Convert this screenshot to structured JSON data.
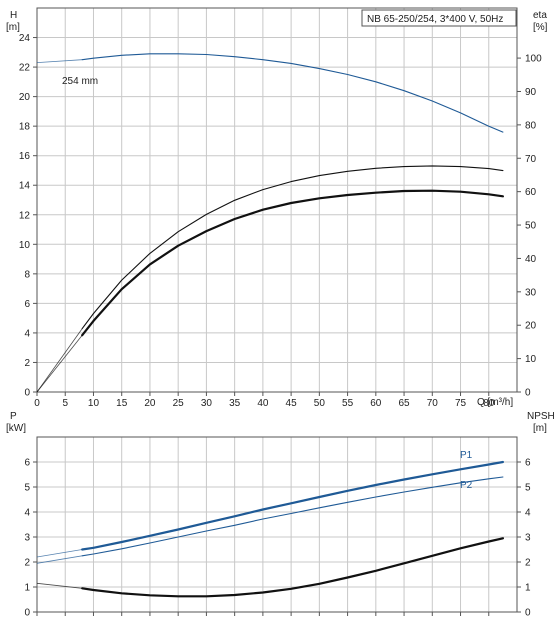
{
  "chart_data": [
    {
      "type": "line",
      "title": "NB 65-250/254, 3*400 V, 50Hz",
      "left_axis_label": [
        "H",
        "[m]"
      ],
      "right_axis_label": [
        "eta",
        "[%]"
      ],
      "xlabel": "Q [m³/h]",
      "xlim": [
        0,
        85
      ],
      "x_ticks": [
        0,
        5,
        10,
        15,
        20,
        25,
        30,
        35,
        40,
        45,
        50,
        55,
        60,
        65,
        70,
        75,
        80
      ],
      "x_tick_labels": [
        "0",
        "5",
        "10",
        "15",
        "20",
        "25",
        "30",
        "35",
        "40",
        "45",
        "50",
        "55",
        "60",
        "65",
        "70",
        "75",
        "80"
      ],
      "ylim_left": [
        0,
        26
      ],
      "y_ticks_left": [
        0,
        2,
        4,
        6,
        8,
        10,
        12,
        14,
        16,
        18,
        20,
        22,
        24
      ],
      "ylim_right": [
        0,
        115
      ],
      "y_ticks_right": [
        0,
        10,
        20,
        30,
        40,
        50,
        60,
        70,
        80,
        90,
        100
      ],
      "grid": true,
      "series": [
        {
          "name": "254 mm",
          "axis": "left",
          "color": "#1f5a96",
          "dashed_extension": [
            [
              0,
              22.3
            ],
            [
              8,
              22.5
            ]
          ],
          "x": [
            8,
            10,
            15,
            20,
            25,
            30,
            35,
            40,
            45,
            50,
            55,
            60,
            65,
            70,
            75,
            80,
            82.5
          ],
          "y": [
            22.5,
            22.6,
            22.8,
            22.9,
            22.9,
            22.85,
            22.7,
            22.5,
            22.25,
            21.9,
            21.5,
            21.0,
            20.4,
            19.7,
            18.9,
            18.0,
            17.6
          ]
        },
        {
          "axis": "right",
          "color": "#111111",
          "dashed_extension": [
            [
              0,
              0
            ],
            [
              8,
              19
            ]
          ],
          "x": [
            8,
            10,
            15,
            20,
            25,
            30,
            35,
            40,
            45,
            50,
            55,
            60,
            65,
            70,
            75,
            80,
            82.5
          ],
          "y": [
            19,
            23.5,
            33.5,
            41.5,
            48,
            53.2,
            57.4,
            60.6,
            63,
            64.8,
            66.1,
            67,
            67.5,
            67.7,
            67.5,
            66.9,
            66.3
          ]
        },
        {
          "axis": "right",
          "color": "#111111",
          "thick": true,
          "dashed_extension": [
            [
              0,
              0
            ],
            [
              8,
              17
            ]
          ],
          "x": [
            8,
            10,
            15,
            20,
            25,
            30,
            35,
            40,
            45,
            50,
            55,
            60,
            65,
            70,
            75,
            80,
            82.5
          ],
          "y": [
            17,
            21.3,
            30.8,
            38.2,
            43.8,
            48.2,
            51.8,
            54.6,
            56.6,
            58,
            59,
            59.7,
            60.2,
            60.3,
            60,
            59.2,
            58.6
          ]
        }
      ]
    },
    {
      "type": "line",
      "left_axis_label": [
        "P",
        "[kW]"
      ],
      "right_axis_label": [
        "NPSH",
        "[m]"
      ],
      "xlim": [
        0,
        85
      ],
      "x_ticks": [
        0,
        5,
        10,
        15,
        20,
        25,
        30,
        35,
        40,
        45,
        50,
        55,
        60,
        65,
        70,
        75,
        80
      ],
      "ylim_left": [
        0,
        7
      ],
      "y_ticks_left": [
        0,
        1,
        2,
        3,
        4,
        5,
        6
      ],
      "ylim_right": [
        0,
        7
      ],
      "y_ticks_right": [
        0,
        1,
        2,
        3,
        4,
        5,
        6
      ],
      "grid": true,
      "series": [
        {
          "name": "P1",
          "axis": "left",
          "color": "#1f5a96",
          "thick": true,
          "dashed_extension": [
            [
              0,
              2.2
            ],
            [
              8,
              2.5
            ]
          ],
          "x": [
            8,
            10,
            15,
            20,
            25,
            30,
            35,
            40,
            45,
            50,
            55,
            60,
            65,
            70,
            75,
            80,
            82.5
          ],
          "y": [
            2.5,
            2.57,
            2.8,
            3.05,
            3.3,
            3.57,
            3.83,
            4.1,
            4.35,
            4.6,
            4.85,
            5.08,
            5.3,
            5.51,
            5.71,
            5.9,
            6.0
          ]
        },
        {
          "name": "P2",
          "axis": "left",
          "color": "#1f5a96",
          "dashed_extension": [
            [
              0,
              1.95
            ],
            [
              8,
              2.25
            ]
          ],
          "x": [
            8,
            10,
            15,
            20,
            25,
            30,
            35,
            40,
            45,
            50,
            55,
            60,
            65,
            70,
            75,
            80,
            82.5
          ],
          "y": [
            2.25,
            2.32,
            2.53,
            2.76,
            3.0,
            3.24,
            3.47,
            3.72,
            3.94,
            4.17,
            4.39,
            4.6,
            4.8,
            4.99,
            5.17,
            5.33,
            5.4
          ]
        },
        {
          "axis": "right",
          "color": "#111111",
          "thick": true,
          "dashed_extension": [
            [
              0,
              1.15
            ],
            [
              8,
              0.95
            ]
          ],
          "x": [
            8,
            10,
            15,
            20,
            25,
            30,
            35,
            40,
            45,
            50,
            55,
            60,
            65,
            70,
            75,
            80,
            82.5
          ],
          "y": [
            0.95,
            0.88,
            0.75,
            0.67,
            0.63,
            0.63,
            0.68,
            0.78,
            0.93,
            1.13,
            1.38,
            1.65,
            1.95,
            2.25,
            2.55,
            2.82,
            2.95
          ]
        }
      ]
    }
  ],
  "colors": {
    "background": "#ffffff",
    "grid": "#c8c8c8",
    "frame": "#555555",
    "head_curve": "#1f5a96",
    "power_curve": "#1f5a96",
    "eta_curve": "#111111",
    "npsh_curve": "#111111"
  }
}
